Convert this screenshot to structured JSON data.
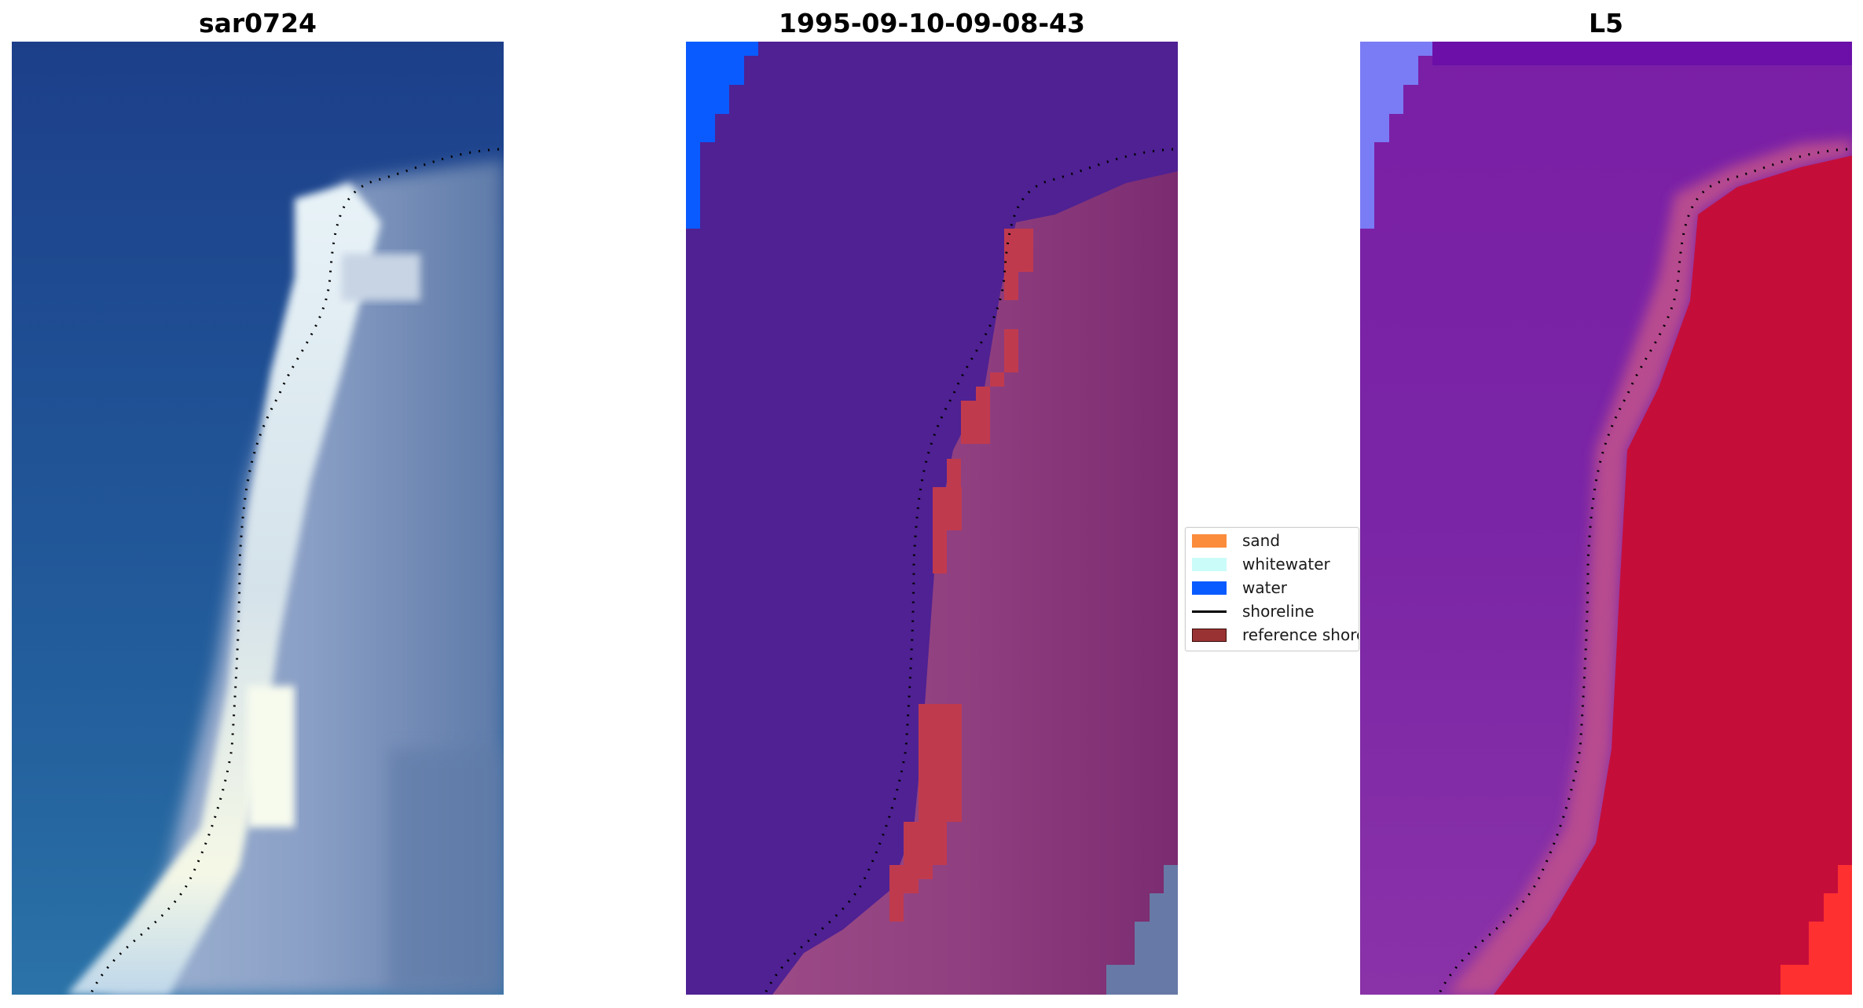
{
  "panels": [
    {
      "title": "sar0724"
    },
    {
      "title": "1995-09-10-09-08-43"
    },
    {
      "title": "L5"
    }
  ],
  "legend": {
    "items": [
      {
        "label": "sand",
        "type": "patch",
        "color": "#fb8c3c"
      },
      {
        "label": "whitewater",
        "type": "patch",
        "color": "#cafcf9"
      },
      {
        "label": "water",
        "type": "patch",
        "color": "#0a5bff"
      },
      {
        "label": "shoreline",
        "type": "line",
        "color": "#000000"
      },
      {
        "label": "reference shore",
        "type": "patch",
        "color": "#993333",
        "edge": "#3a0d0d"
      }
    ]
  },
  "colors": {
    "sar_deep_water": "#1f4f94",
    "sar_beach": "#dfe9ef",
    "class_ocean": "#4f2193",
    "class_water": "#0a5bff",
    "class_land": "#8a3a7b",
    "class_reference": "#c03a4e",
    "l5_water": "#7a22a4",
    "l5_land": "#c50d3a",
    "l5_corner": "#ff3030"
  }
}
